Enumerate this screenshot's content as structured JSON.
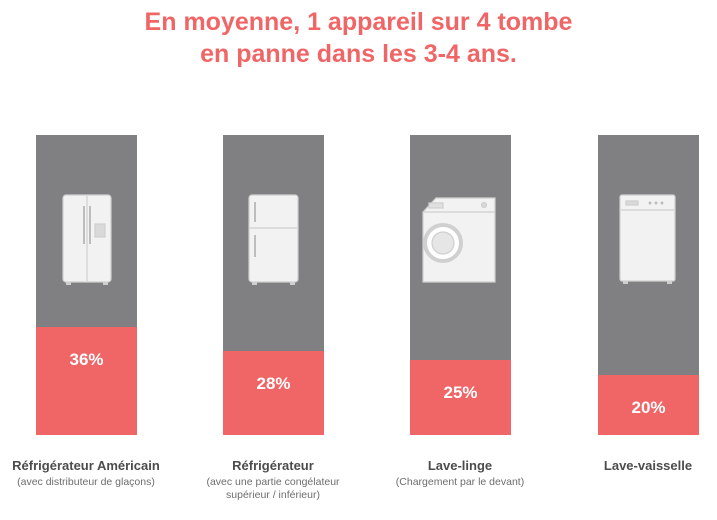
{
  "title_line1": "En moyenne, 1 appareil sur 4 tombe",
  "title_line2": "en panne dans les 3-4 ans.",
  "colors": {
    "accent": "#f06566",
    "track": "#808083",
    "text": "#4c4c4c"
  },
  "chart_data": {
    "type": "bar",
    "title": "En moyenne, 1 appareil sur 4 tombe en panne dans les 3-4 ans.",
    "categories": [
      "Réfrigérateur Américain",
      "Réfrigérateur",
      "Lave-linge",
      "Lave-vaisselle"
    ],
    "values": [
      36,
      28,
      25,
      20
    ],
    "value_labels": [
      "36%",
      "28%",
      "25%",
      "20%"
    ],
    "sublabels": [
      "(avec distributeur de glaçons)",
      "(avec une partie congélateur supérieur / inférieur)",
      "(Chargement par le devant)",
      ""
    ],
    "icons": [
      "american-fridge-icon",
      "fridge-icon",
      "washing-machine-icon",
      "dishwasher-icon"
    ],
    "ylim": [
      0,
      100
    ]
  }
}
